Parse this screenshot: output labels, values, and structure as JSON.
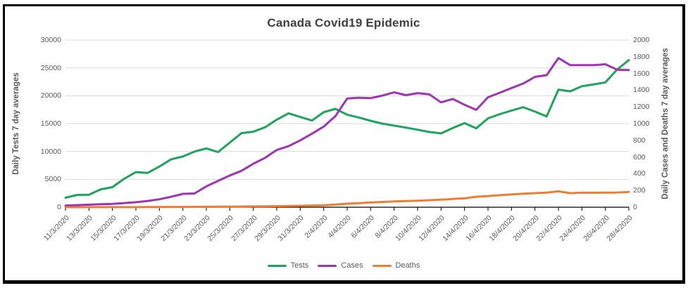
{
  "title": "Canada Covid19 Epidemic",
  "styles": {
    "background": "#FFFFFF",
    "frame_border": "#000000",
    "title_color": "#404040",
    "axis_text_color": "#595959",
    "grid_color": "#D9D9D9",
    "axis_line_color": "#000000"
  },
  "chart_data": {
    "type": "line",
    "title": "Canada Covid19 Epidemic",
    "grid": "horizontal",
    "legend_position": "bottom",
    "left_axis": {
      "label": "Daily Tests 7 day averages",
      "min": 0,
      "max": 30000,
      "step": 5000,
      "ticks": [
        "0",
        "5000",
        "10000",
        "15000",
        "20000",
        "25000",
        "30000"
      ]
    },
    "right_axis": {
      "label": "Daily Cases and Deaths 7 day averages",
      "min": 0,
      "max": 2000,
      "step": 200,
      "ticks": [
        "0",
        "200",
        "400",
        "600",
        "800",
        "1000",
        "1200",
        "1400",
        "1600",
        "1800",
        "2000"
      ]
    },
    "x_tick_labels": [
      "11/3/2020",
      "13/3/2020",
      "15/3/2020",
      "17/3/2020",
      "19/3/2020",
      "21/3/2020",
      "23/3/2020",
      "25/3/2020",
      "27/3/2020",
      "29/3/2020",
      "31/3/2020",
      "2/4/2020",
      "4/4/2020",
      "6/4/2020",
      "8/4/2020",
      "10/4/2020",
      "12/4/2020",
      "14/4/2020",
      "16/4/2020",
      "18/4/2020",
      "20/4/2020",
      "22/4/2020",
      "24/4/2020",
      "26/4/2020",
      "28/4/2020"
    ],
    "x": [
      "11/3/2020",
      "12/3/2020",
      "13/3/2020",
      "14/3/2020",
      "15/3/2020",
      "16/3/2020",
      "17/3/2020",
      "18/3/2020",
      "19/3/2020",
      "20/3/2020",
      "21/3/2020",
      "22/3/2020",
      "23/3/2020",
      "24/3/2020",
      "25/3/2020",
      "26/3/2020",
      "27/3/2020",
      "28/3/2020",
      "29/3/2020",
      "30/3/2020",
      "31/3/2020",
      "1/4/2020",
      "2/4/2020",
      "3/4/2020",
      "4/4/2020",
      "5/4/2020",
      "6/4/2020",
      "7/4/2020",
      "8/4/2020",
      "9/4/2020",
      "10/4/2020",
      "11/4/2020",
      "12/4/2020",
      "13/4/2020",
      "14/4/2020",
      "15/4/2020",
      "16/4/2020",
      "17/4/2020",
      "18/4/2020",
      "19/4/2020",
      "20/4/2020",
      "21/4/2020",
      "22/4/2020",
      "23/4/2020",
      "24/4/2020",
      "25/4/2020",
      "26/4/2020",
      "27/4/2020",
      "28/4/2020"
    ],
    "series": [
      {
        "name": "Tests",
        "axis": "left",
        "color": "#1CA45C",
        "values": [
          1700,
          2200,
          2250,
          3200,
          3600,
          5100,
          6300,
          6150,
          7300,
          8600,
          9100,
          10000,
          10550,
          9900,
          11600,
          13300,
          13550,
          14350,
          15700,
          16850,
          16200,
          15550,
          17050,
          17650,
          16600,
          16100,
          15500,
          15000,
          14650,
          14300,
          13900,
          13500,
          13250,
          14200,
          15100,
          14150,
          15950,
          16700,
          17350,
          17950,
          17150,
          16300,
          21100,
          20800,
          21700,
          22050,
          22400,
          24700,
          26400
        ]
      },
      {
        "name": "Cases",
        "axis": "right",
        "color": "#A032B4",
        "values": [
          20,
          25,
          30,
          35,
          40,
          50,
          60,
          75,
          95,
          125,
          160,
          165,
          250,
          315,
          380,
          435,
          520,
          590,
          685,
          730,
          800,
          880,
          965,
          1090,
          1300,
          1310,
          1305,
          1335,
          1375,
          1340,
          1365,
          1350,
          1255,
          1295,
          1225,
          1165,
          1315,
          1370,
          1425,
          1480,
          1560,
          1580,
          1785,
          1700,
          1700,
          1700,
          1710,
          1645,
          1640
        ]
      },
      {
        "name": "Deaths",
        "axis": "right",
        "color": "#ED7D31",
        "values": [
          0,
          0,
          1,
          1,
          1,
          1,
          1,
          2,
          2,
          3,
          3,
          4,
          5,
          6,
          7,
          8,
          10,
          11,
          13,
          15,
          17,
          20,
          23,
          32,
          42,
          49,
          56,
          63,
          70,
          74,
          78,
          84,
          90,
          98,
          107,
          125,
          134,
          144,
          154,
          161,
          168,
          174,
          190,
          168,
          174,
          173,
          174,
          176,
          182
        ]
      }
    ]
  }
}
